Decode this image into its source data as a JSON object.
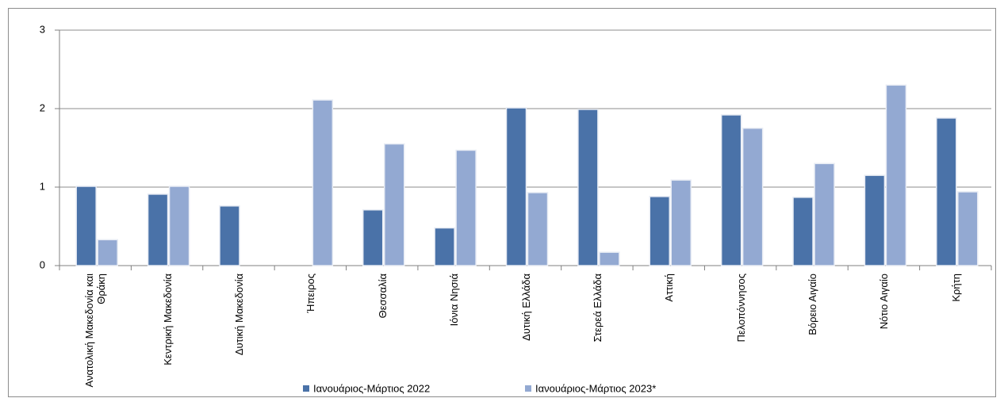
{
  "chart_data": {
    "type": "bar",
    "categories": [
      "Ανατολική Μακεδονία και Θράκη",
      "Κεντρική Μακεδονία",
      "Δυτική Μακεδονία",
      "Ήπειρος",
      "Θεσσαλία",
      "Ιόνια Νησιά",
      "Δυτική Ελλάδα",
      "Στερεά Ελλάδα",
      "Αττική",
      "Πελοπόννησος",
      "Βόρειο Αιγαίο",
      "Νότιο Αιγαίο",
      "Κρήτη"
    ],
    "series": [
      {
        "name": "Ιανουάριος-Μάρτιος 2022",
        "color": "#4a72a8",
        "values": [
          1.01,
          0.91,
          0.76,
          null,
          0.71,
          0.48,
          2.01,
          1.99,
          0.88,
          1.92,
          0.87,
          1.15,
          1.88
        ]
      },
      {
        "name": "Ιανουάριος-Μάρτιος 2023*",
        "color": "#93a9d2",
        "values": [
          0.33,
          1.01,
          null,
          2.11,
          1.55,
          1.47,
          0.93,
          0.17,
          1.09,
          1.75,
          1.3,
          2.3,
          0.94
        ]
      }
    ],
    "ylim": [
      0,
      3
    ],
    "yticks": [
      0,
      1,
      2,
      3
    ],
    "grid": true,
    "legend": "bottom"
  }
}
